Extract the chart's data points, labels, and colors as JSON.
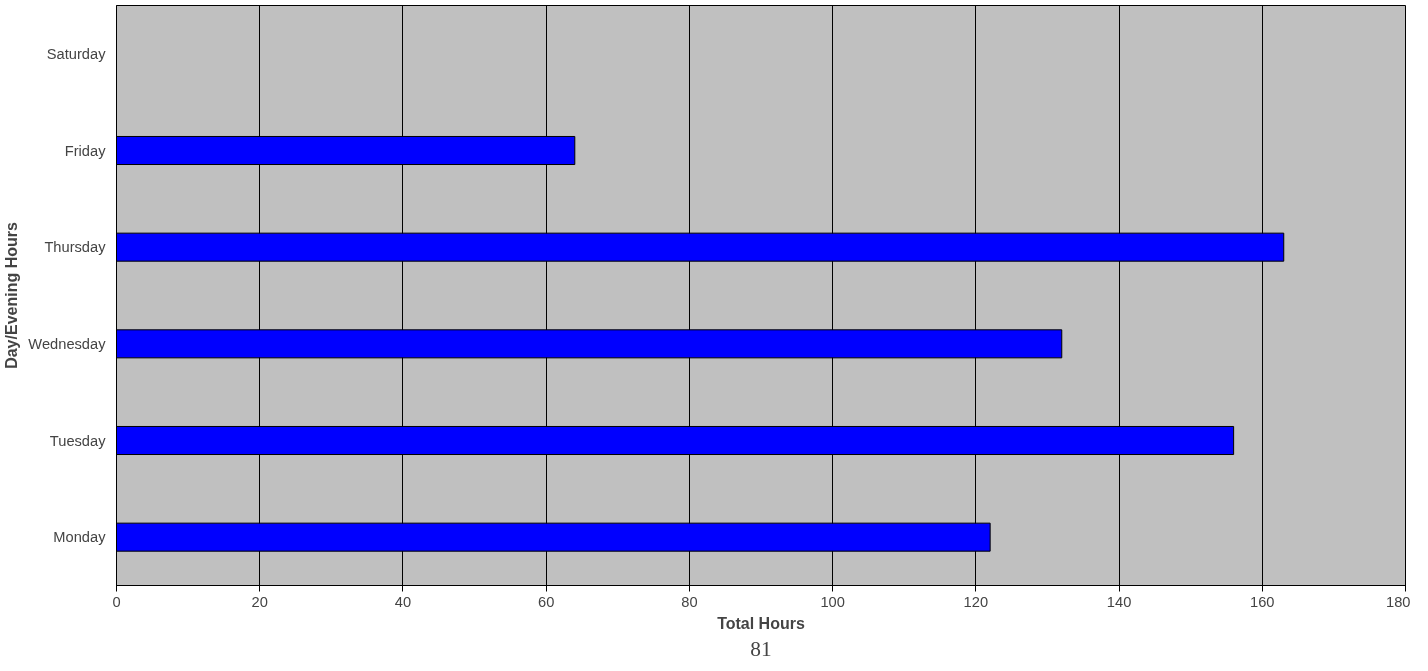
{
  "chart_data": {
    "type": "bar",
    "orientation": "horizontal",
    "xlabel": "Total Hours",
    "ylabel": "Day/Evening Hours",
    "categories": [
      "Saturday",
      "Friday",
      "Thursday",
      "Wednesday",
      "Tuesday",
      "Monday"
    ],
    "values": [
      null,
      64,
      163,
      132,
      156,
      122
    ],
    "color": "#0000ff",
    "xlim": [
      0,
      180
    ],
    "xticks": [
      0,
      20,
      40,
      60,
      80,
      100,
      120,
      140,
      160,
      180
    ],
    "grid": "x",
    "annotations": [
      "81"
    ]
  }
}
